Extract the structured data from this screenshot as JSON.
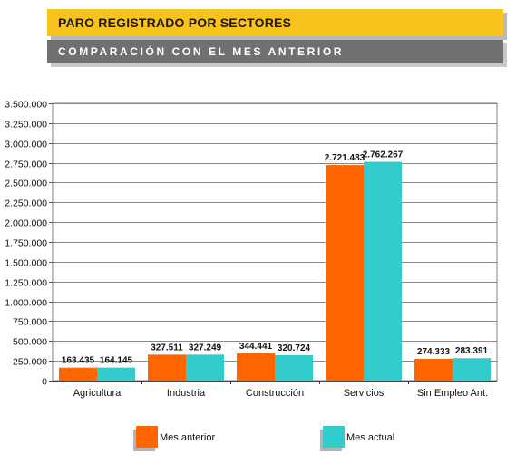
{
  "header": {
    "title": "PARO REGISTRADO POR SECTORES",
    "subtitle": "COMPARACIÓN CON EL MES ANTERIOR"
  },
  "chart_data": {
    "type": "bar",
    "categories": [
      "Agricultura",
      "Industria",
      "Construcción",
      "Servicios",
      "Sin Empleo Ant."
    ],
    "series": [
      {
        "name": "Mes anterior",
        "color": "#ff6600",
        "values": [
          163435,
          327511,
          344441,
          2721483,
          274333
        ],
        "labels": [
          "163.435",
          "327.511",
          "344.441",
          "2.721.483",
          "274.333"
        ]
      },
      {
        "name": "Mes actual",
        "color": "#33cccc",
        "values": [
          164145,
          327249,
          320724,
          2762267,
          283391
        ],
        "labels": [
          "164.145",
          "327.249",
          "320.724",
          "2.762.267",
          "283.391"
        ]
      }
    ],
    "ylim": [
      0,
      3500000
    ],
    "yticks": [
      0,
      250000,
      500000,
      750000,
      1000000,
      1250000,
      1500000,
      1750000,
      2000000,
      2250000,
      2500000,
      2750000,
      3000000,
      3250000,
      3500000
    ],
    "ytick_labels": [
      "0",
      "250.000",
      "500.000",
      "750.000",
      "1.000.000",
      "1.250.000",
      "1.500.000",
      "1.750.000",
      "2.000.000",
      "2.250.000",
      "2.500.000",
      "2.750.000",
      "3.000.000",
      "3.250.000",
      "3.500.000"
    ],
    "grid": true,
    "legend_position": "bottom"
  }
}
